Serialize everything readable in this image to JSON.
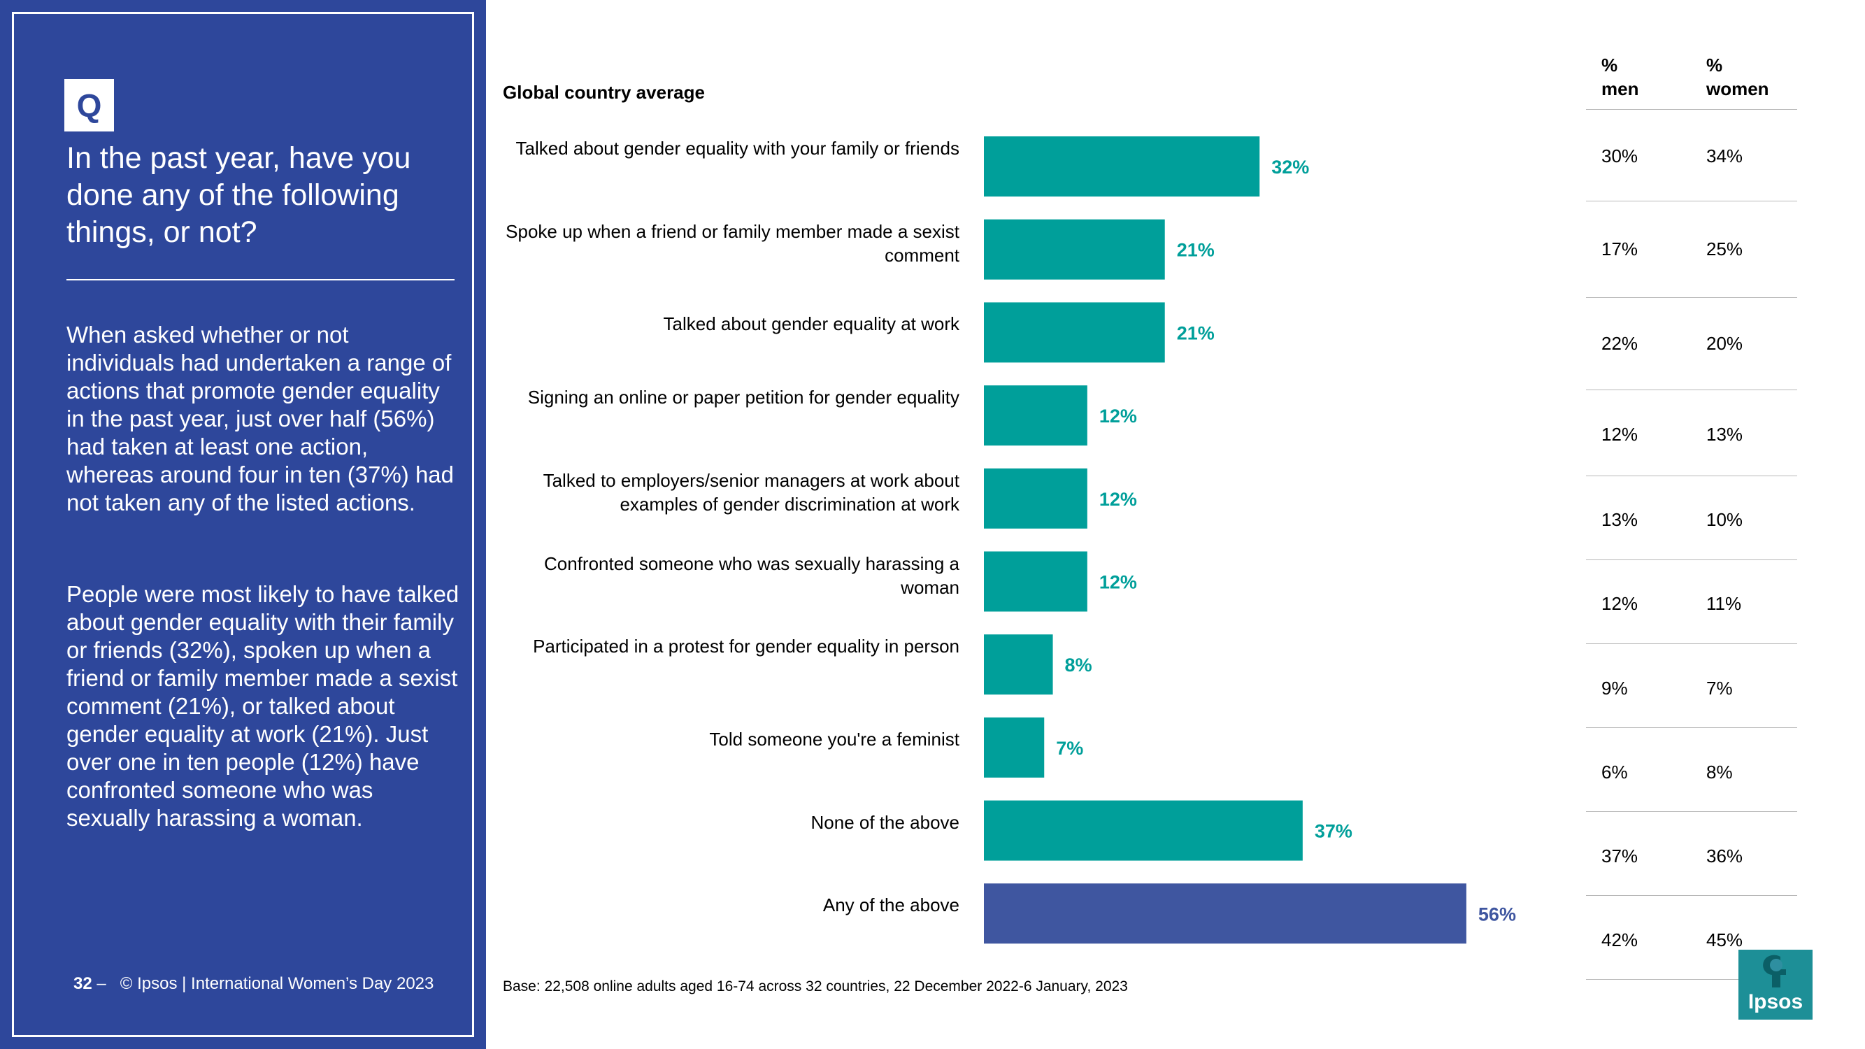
{
  "question": {
    "badge": "Q",
    "text": "In the past year, have you done any of the following things, or not?"
  },
  "summary": {
    "paragraph1": "When asked whether or not individuals had undertaken a range of actions that promote gender equality in the past year, just over half (56%) had taken at least one action, whereas around four in ten (37%) had not taken any of the listed actions.",
    "paragraph2": "People were most likely to have talked about gender equality with their family or friends (32%), spoken up when a friend or family member made a sexist comment (21%), or talked about gender equality at work (21%). Just over one in ten people (12%) have confronted someone who was sexually harassing a woman."
  },
  "footer": {
    "page_number": "32",
    "separator": "–",
    "text": "© Ipsos | International Women’s Day 2023",
    "base": "Base: 22,508 online adults aged 16-74 across 32 countries, 22 December 2022-6 January, 2023"
  },
  "logo": {
    "text": "Ipsos",
    "color": "#1d8f97"
  },
  "colors": {
    "panel": "#2e479b",
    "bar_primary": "#009f9a",
    "bar_highlight": "#3f56a0"
  },
  "table": {
    "header_men": [
      "%",
      "men"
    ],
    "header_women": [
      "%",
      "women"
    ],
    "men": [
      "30%",
      "17%",
      "22%",
      "12%",
      "13%",
      "12%",
      "9%",
      "6%",
      "37%",
      "42%"
    ],
    "women": [
      "34%",
      "25%",
      "20%",
      "13%",
      "10%",
      "11%",
      "7%",
      "8%",
      "36%",
      "45%"
    ]
  },
  "chart_data": {
    "type": "bar",
    "orientation": "horizontal",
    "title": "Global country average",
    "categories": [
      "Talked about gender equality with your family or friends",
      "Spoke up when a friend or family member made a sexist comment",
      "Talked about gender equality at work",
      "Signing an online or paper petition for gender equality",
      "Talked to employers/senior managers at work about examples of gender discrimination at work",
      "Confronted someone who was sexually harassing a woman",
      "Participated in a protest for gender equality in person",
      "Told someone you're a feminist",
      "None of the above",
      "Any of the above"
    ],
    "values": [
      32,
      21,
      21,
      12,
      12,
      12,
      8,
      7,
      37,
      56
    ],
    "labels": [
      "32%",
      "21%",
      "21%",
      "12%",
      "12%",
      "12%",
      "8%",
      "7%",
      "37%",
      "56%"
    ],
    "highlight_index": 9,
    "xlim": [
      0,
      100
    ],
    "grid": false,
    "legend": "none"
  }
}
